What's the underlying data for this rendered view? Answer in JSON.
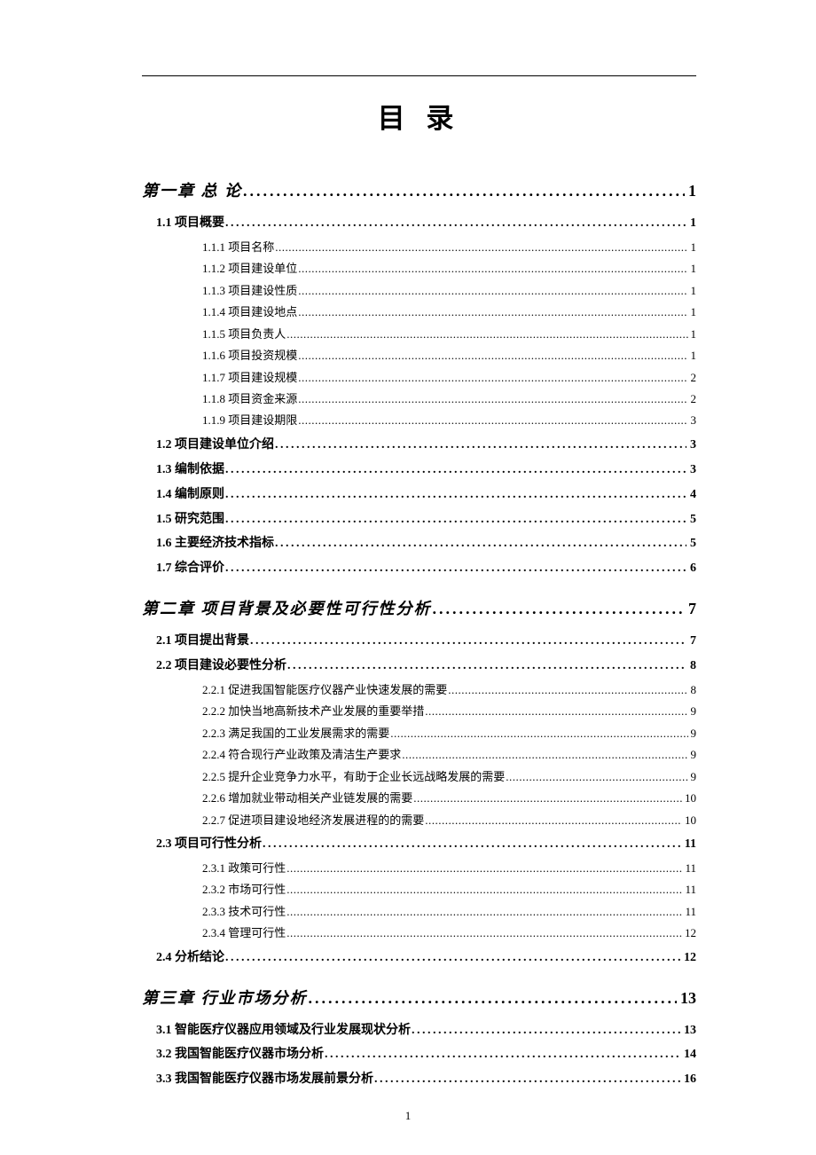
{
  "title": "目 录",
  "footer_page": "1",
  "toc": [
    {
      "type": "chapter",
      "label": "第一章 总 论",
      "page": "1",
      "sections": [
        {
          "type": "section",
          "label": "1.1 项目概要",
          "page": "1",
          "subs": [
            {
              "label": "1.1.1 项目名称",
              "page": "1"
            },
            {
              "label": "1.1.2 项目建设单位",
              "page": "1"
            },
            {
              "label": "1.1.3 项目建设性质",
              "page": "1"
            },
            {
              "label": "1.1.4 项目建设地点",
              "page": "1"
            },
            {
              "label": "1.1.5 项目负责人",
              "page": "1"
            },
            {
              "label": "1.1.6 项目投资规模",
              "page": "1"
            },
            {
              "label": "1.1.7 项目建设规模",
              "page": "2"
            },
            {
              "label": "1.1.8 项目资金来源",
              "page": "2"
            },
            {
              "label": "1.1.9 项目建设期限",
              "page": "3"
            }
          ]
        },
        {
          "type": "section",
          "label": "1.2 项目建设单位介绍",
          "page": "3"
        },
        {
          "type": "section",
          "label": "1.3 编制依据",
          "page": "3"
        },
        {
          "type": "section",
          "label": "1.4 编制原则",
          "page": "4"
        },
        {
          "type": "section",
          "label": "1.5 研究范围",
          "page": "5"
        },
        {
          "type": "section",
          "label": "1.6 主要经济技术指标",
          "page": "5"
        },
        {
          "type": "section",
          "label": "1.7 综合评价",
          "page": "6"
        }
      ]
    },
    {
      "type": "chapter",
      "label": "第二章 项目背景及必要性可行性分析",
      "page": "7",
      "sections": [
        {
          "type": "section",
          "label": "2.1 项目提出背景",
          "page": "7"
        },
        {
          "type": "section",
          "label": "2.2 项目建设必要性分析",
          "page": "8",
          "subs": [
            {
              "label": "2.2.1 促进我国智能医疗仪器产业快速发展的需要",
              "page": "8"
            },
            {
              "label": "2.2.2 加快当地高新技术产业发展的重要举措",
              "page": "9"
            },
            {
              "label": "2.2.3 满足我国的工业发展需求的需要",
              "page": "9"
            },
            {
              "label": "2.2.4 符合现行产业政策及清洁生产要求",
              "page": "9"
            },
            {
              "label": "2.2.5 提升企业竞争力水平，有助于企业长远战略发展的需要",
              "page": "9"
            },
            {
              "label": "2.2.6 增加就业带动相关产业链发展的需要",
              "page": "10"
            },
            {
              "label": "2.2.7 促进项目建设地经济发展进程的的需要",
              "page": "10"
            }
          ]
        },
        {
          "type": "section",
          "label": "2.3 项目可行性分析",
          "page": "11",
          "subs": [
            {
              "label": "2.3.1 政策可行性",
              "page": "11"
            },
            {
              "label": "2.3.2 市场可行性",
              "page": "11"
            },
            {
              "label": "2.3.3 技术可行性",
              "page": "11"
            },
            {
              "label": "2.3.4 管理可行性",
              "page": "12"
            }
          ]
        },
        {
          "type": "section",
          "label": "2.4 分析结论",
          "page": "12",
          "alt_font": true
        }
      ]
    },
    {
      "type": "chapter",
      "label": "第三章 行业市场分析",
      "page": "13",
      "sections": [
        {
          "type": "section",
          "label": "3.1 智能医疗仪器应用领域及行业发展现状分析",
          "page": "13"
        },
        {
          "type": "section",
          "label": "3.2 我国智能医疗仪器市场分析",
          "page": "14"
        },
        {
          "type": "section",
          "label": "3.3 我国智能医疗仪器市场发展前景分析",
          "page": "16"
        }
      ]
    }
  ]
}
